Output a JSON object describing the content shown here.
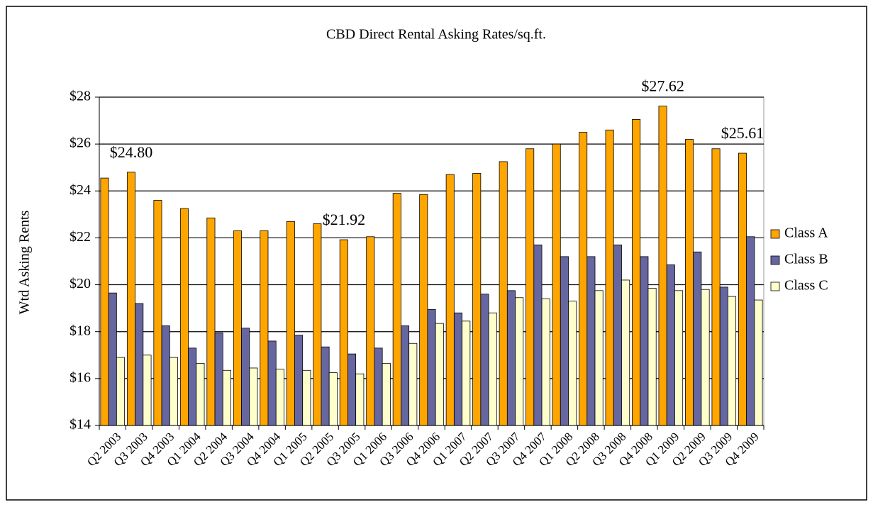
{
  "chart_data": {
    "type": "bar",
    "title": "CBD Direct Rental Asking Rates/sq.ft.",
    "y_label": "Wtd Asking Rents",
    "categories": [
      "Q2 2003",
      "Q3 2003",
      "Q4 2003",
      "Q1 2004",
      "Q2 2004",
      "Q3 2004",
      "Q4 2004",
      "Q1 2005",
      "Q2 2005",
      "Q3 2005",
      "Q1 2006",
      "Q3 2006",
      "Q4 2006",
      "Q1 2007",
      "Q2 2007",
      "Q3 2007",
      "Q4 2007",
      "Q1 2008",
      "Q2 2008",
      "Q3 2008",
      "Q4 2008",
      "Q1 2009",
      "Q2 2009",
      "Q3 2009",
      "Q4 2009"
    ],
    "series": [
      {
        "name": "Class A",
        "color": "#ffa500",
        "values": [
          24.55,
          24.8,
          23.6,
          23.25,
          22.85,
          22.3,
          22.3,
          22.7,
          22.6,
          21.92,
          22.05,
          23.9,
          23.85,
          24.7,
          24.75,
          25.25,
          25.8,
          26.0,
          26.5,
          26.6,
          27.05,
          27.62,
          26.2,
          25.8,
          25.61
        ],
        "value_labels": [
          null,
          "$24.80",
          null,
          null,
          null,
          null,
          null,
          null,
          null,
          "$21.92",
          null,
          null,
          null,
          null,
          null,
          null,
          null,
          null,
          null,
          null,
          null,
          "$27.62",
          null,
          null,
          "$25.61"
        ]
      },
      {
        "name": "Class B",
        "color": "#6666a0",
        "values": [
          19.65,
          19.2,
          18.25,
          17.3,
          17.95,
          18.15,
          17.6,
          17.85,
          17.35,
          17.05,
          17.3,
          18.25,
          18.95,
          18.8,
          19.6,
          19.75,
          21.7,
          21.2,
          21.2,
          21.7,
          21.2,
          20.85,
          21.4,
          19.9,
          22.05
        ]
      },
      {
        "name": "Class C",
        "color": "#ffffcc",
        "values": [
          16.9,
          17.0,
          16.9,
          16.65,
          16.35,
          16.45,
          16.4,
          16.35,
          16.25,
          16.2,
          16.65,
          17.5,
          18.35,
          18.45,
          18.8,
          19.45,
          19.4,
          19.3,
          19.75,
          20.2,
          19.85,
          19.75,
          19.8,
          19.5,
          19.35
        ]
      }
    ],
    "ylim": [
      14,
      28
    ],
    "yticks": [
      {
        "value": 14,
        "label": "$14"
      },
      {
        "value": 16,
        "label": "$16"
      },
      {
        "value": 18,
        "label": "$18"
      },
      {
        "value": 20,
        "label": "$20"
      },
      {
        "value": 22,
        "label": "$22"
      },
      {
        "value": 24,
        "label": "$24"
      },
      {
        "value": 26,
        "label": "$26"
      },
      {
        "value": 28,
        "label": "$28"
      }
    ],
    "grid": true,
    "legend": "right"
  }
}
